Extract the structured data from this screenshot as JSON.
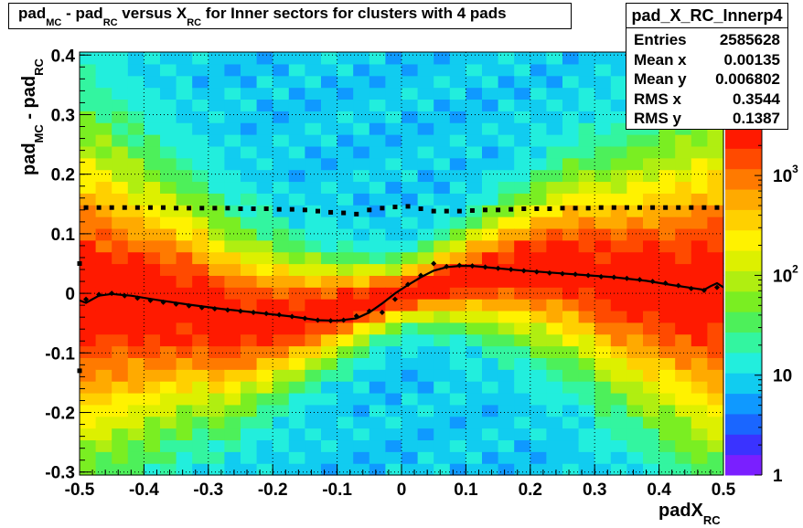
{
  "chart_data": {
    "type": "heatmap",
    "title": {
      "parts": [
        {
          "text": "pad",
          "sub": false
        },
        {
          "text": "MC",
          "sub": true
        },
        {
          "text": " - pad",
          "sub": false
        },
        {
          "text": "RC",
          "sub": true
        },
        {
          "text": " versus X",
          "sub": false
        },
        {
          "text": "RC",
          "sub": true
        },
        {
          "text": " for Inner sectors for clusters with 4 pads",
          "sub": false
        }
      ]
    },
    "xlabel": {
      "main": "padX",
      "sub": "RC"
    },
    "ylabel": {
      "p1": "pad",
      "s1": "MC",
      "p2": " - pad",
      "s2": "RC"
    },
    "xlim": [
      -0.5,
      0.5
    ],
    "ylim": [
      -0.305,
      0.405
    ],
    "zscale": "log",
    "zlim": [
      1,
      3000
    ],
    "x_ticks": [
      "-0.5",
      "-0.4",
      "-0.3",
      "-0.2",
      "-0.1",
      "0",
      "0.1",
      "0.2",
      "0.3",
      "0.4",
      "0.5"
    ],
    "y_ticks": [
      "-0.3",
      "-0.2",
      "-0.1",
      "0",
      "0.1",
      "0.2",
      "0.3",
      "0.4"
    ],
    "z_ticks": [
      "1",
      "10",
      "10^2",
      "10^3"
    ],
    "grid": true,
    "palette": [
      "#7a1fff",
      "#3a33ff",
      "#1a66ff",
      "#0f99ff",
      "#11ccf0",
      "#22eedd",
      "#33f5a0",
      "#4df05a",
      "#7aee22",
      "#b0ee11",
      "#ddf000",
      "#fff200",
      "#ffd000",
      "#ffaa00",
      "#ff7a00",
      "#ff4a00",
      "#ff1a00"
    ],
    "series": [
      {
        "kind": "mean-profile",
        "x": [
          -0.49,
          -0.47,
          -0.45,
          -0.43,
          -0.41,
          -0.39,
          -0.37,
          -0.35,
          -0.33,
          -0.31,
          -0.29,
          -0.27,
          -0.25,
          -0.23,
          -0.21,
          -0.19,
          -0.17,
          -0.15,
          -0.13,
          -0.11,
          -0.09,
          -0.07,
          -0.05,
          -0.03,
          -0.01,
          0.01,
          0.03,
          0.05,
          0.07,
          0.09,
          0.11,
          0.13,
          0.15,
          0.17,
          0.19,
          0.21,
          0.23,
          0.25,
          0.27,
          0.29,
          0.31,
          0.33,
          0.35,
          0.37,
          0.39,
          0.41,
          0.43,
          0.45,
          0.47,
          0.49
        ],
        "y": [
          -0.01,
          -0.002,
          0.0,
          -0.004,
          -0.008,
          -0.012,
          -0.015,
          -0.018,
          -0.021,
          -0.024,
          -0.026,
          -0.028,
          -0.03,
          -0.032,
          -0.034,
          -0.036,
          -0.039,
          -0.042,
          -0.045,
          -0.046,
          -0.045,
          -0.038,
          -0.03,
          -0.032,
          -0.01,
          0.015,
          0.03,
          0.05,
          0.045,
          0.047,
          0.046,
          0.044,
          0.042,
          0.04,
          0.038,
          0.036,
          0.034,
          0.033,
          0.032,
          0.03,
          0.028,
          0.027,
          0.025,
          0.023,
          0.02,
          0.017,
          0.013,
          0.008,
          0.005,
          0.01
        ]
      },
      {
        "kind": "fit-curve",
        "x": [
          -0.5,
          -0.49,
          -0.47,
          -0.45,
          -0.42,
          -0.38,
          -0.33,
          -0.28,
          -0.22,
          -0.17,
          -0.13,
          -0.1,
          -0.07,
          -0.05,
          -0.03,
          -0.01,
          0.01,
          0.03,
          0.05,
          0.07,
          0.09,
          0.11,
          0.14,
          0.18,
          0.23,
          0.28,
          0.33,
          0.38,
          0.42,
          0.45,
          0.47,
          0.48,
          0.49,
          0.5
        ],
        "y": [
          -0.012,
          -0.016,
          -0.004,
          -0.001,
          -0.004,
          -0.011,
          -0.019,
          -0.026,
          -0.033,
          -0.039,
          -0.045,
          -0.046,
          -0.042,
          -0.032,
          -0.017,
          0.0,
          0.014,
          0.027,
          0.038,
          0.044,
          0.046,
          0.046,
          0.043,
          0.039,
          0.035,
          0.031,
          0.027,
          0.021,
          0.014,
          0.009,
          0.006,
          0.012,
          0.017,
          0.01
        ]
      },
      {
        "kind": "rms-profile",
        "x": [
          -0.49,
          -0.47,
          -0.45,
          -0.43,
          -0.41,
          -0.39,
          -0.37,
          -0.35,
          -0.33,
          -0.31,
          -0.29,
          -0.27,
          -0.25,
          -0.23,
          -0.21,
          -0.19,
          -0.17,
          -0.15,
          -0.13,
          -0.11,
          -0.09,
          -0.07,
          -0.05,
          -0.03,
          -0.01,
          0.01,
          0.03,
          0.05,
          0.07,
          0.09,
          0.11,
          0.13,
          0.15,
          0.17,
          0.19,
          0.21,
          0.23,
          0.25,
          0.27,
          0.29,
          0.31,
          0.33,
          0.35,
          0.37,
          0.39,
          0.41,
          0.43,
          0.45,
          0.47,
          0.49
        ],
        "y": [
          0.144,
          0.144,
          0.144,
          0.144,
          0.144,
          0.144,
          0.144,
          0.143,
          0.143,
          0.143,
          0.143,
          0.143,
          0.142,
          0.142,
          0.142,
          0.141,
          0.141,
          0.14,
          0.138,
          0.136,
          0.135,
          0.133,
          0.14,
          0.143,
          0.145,
          0.146,
          0.142,
          0.138,
          0.138,
          0.138,
          0.139,
          0.14,
          0.14,
          0.141,
          0.142,
          0.142,
          0.142,
          0.143,
          0.143,
          0.143,
          0.144,
          0.144,
          0.144,
          0.144,
          0.144,
          0.144,
          0.144,
          0.144,
          0.144,
          0.144
        ]
      },
      {
        "kind": "edge-points",
        "x": [
          -0.5,
          -0.5
        ],
        "y": [
          0.05,
          -0.13
        ]
      }
    ]
  },
  "stats": {
    "name": "pad_X_RC_Innerp4",
    "rows": [
      {
        "label": "Entries",
        "value": "2585628"
      },
      {
        "label": "Mean x",
        "value": "0.00135"
      },
      {
        "label": "Mean y",
        "value": "0.006802"
      },
      {
        "label": "RMS x",
        "value": "0.3544"
      },
      {
        "label": "RMS y",
        "value": "0.1387"
      }
    ]
  }
}
